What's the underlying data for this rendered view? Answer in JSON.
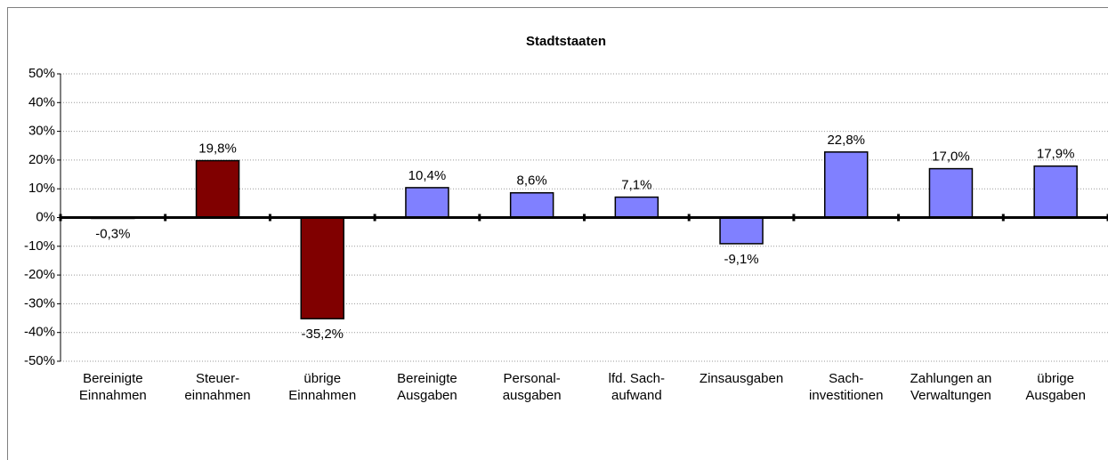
{
  "chart_data": {
    "type": "bar",
    "title": "Stadtstaaten",
    "categories": [
      "Bereinigte\nEinnahmen",
      "Steuer-\neinnahmen",
      "übrige\nEinnahmen",
      "Bereinigte\nAusgaben",
      "Personal-\nausgaben",
      "lfd. Sach-\naufwand",
      "Zinsausgaben",
      "Sach-\ninvestitionen",
      "Zahlungen an\nVerwaltungen",
      "übrige\nAusgaben"
    ],
    "values": [
      -0.3,
      19.8,
      -35.2,
      10.4,
      8.6,
      7.1,
      -9.1,
      22.8,
      17.0,
      17.9
    ],
    "value_labels": [
      "-0,3%",
      "19,8%",
      "-35,2%",
      "10,4%",
      "8,6%",
      "7,1%",
      "-9,1%",
      "22,8%",
      "17,0%",
      "17,9%"
    ],
    "colors": [
      "#800000",
      "#800000",
      "#800000",
      "#8080ff",
      "#8080ff",
      "#8080ff",
      "#8080ff",
      "#8080ff",
      "#8080ff",
      "#8080ff"
    ],
    "ylim": [
      -50,
      50
    ],
    "yticks": [
      {
        "value": -50,
        "label": "-50%"
      },
      {
        "value": -40,
        "label": "-40%"
      },
      {
        "value": -30,
        "label": "-30%"
      },
      {
        "value": -20,
        "label": "-20%"
      },
      {
        "value": -10,
        "label": "-10%"
      },
      {
        "value": 0,
        "label": "0%"
      },
      {
        "value": 10,
        "label": "10%"
      },
      {
        "value": 20,
        "label": "20%"
      },
      {
        "value": 30,
        "label": "30%"
      },
      {
        "value": 40,
        "label": "40%"
      },
      {
        "value": 50,
        "label": "50%"
      }
    ],
    "grid": true
  }
}
